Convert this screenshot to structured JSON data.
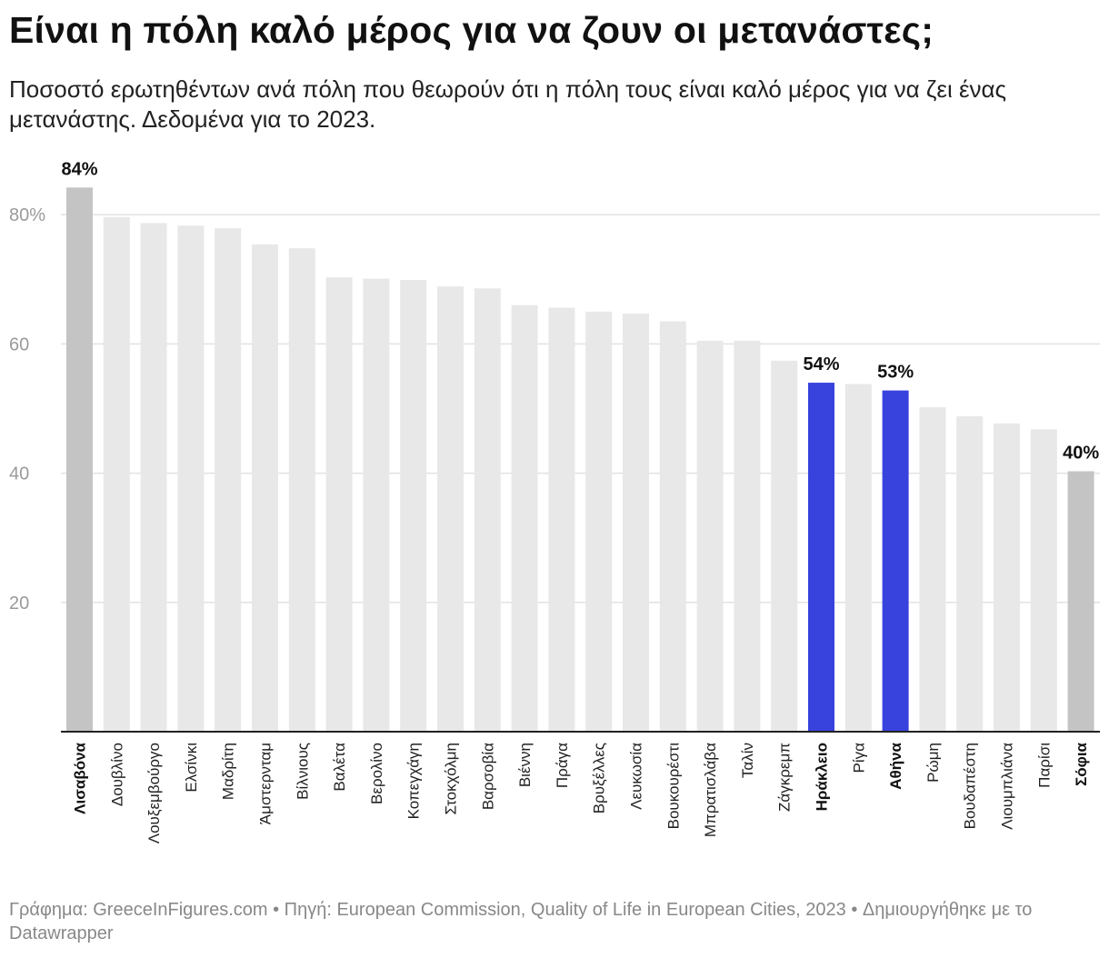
{
  "title": "Είναι η πόλη καλό μέρος για να ζουν οι μετανάστες;",
  "subtitle": "Ποσοστό ερωτηθέντων ανά πόλη που θεωρούν ότι η πόλη τους είναι καλό μέρος για να ζει ένας μετανάστης. Δεδομένα για το 2023.",
  "footer": "Γράφημα: GreeceInFigures.com • Πηγή: European Commission, Quality of Life in European Cities, 2023 • Δημιουργήθηκε με το Datawrapper",
  "colors": {
    "default_bar": "#e8e8e8",
    "extreme_bar": "#c4c4c4",
    "highlight_bar": "#3843dd",
    "gridline": "#e2e2e2",
    "axis": "#222222"
  },
  "chart_data": {
    "type": "bar",
    "title": "Είναι η πόλη καλό μέρος για να ζουν οι μετανάστες;",
    "xlabel": "",
    "ylabel": "",
    "ylim": [
      0,
      88
    ],
    "yticks": [
      20,
      40,
      60,
      80
    ],
    "ytick_labels": [
      "20",
      "40",
      "60",
      "80%"
    ],
    "categories": [
      "Λισαβόνα",
      "Δουβλίνο",
      "Λουξεμβούργο",
      "Ελσίνκι",
      "Μαδρίτη",
      "Άμστερνταμ",
      "Βίλνιους",
      "Βαλέτα",
      "Βερολίνο",
      "Κοπεγχάγη",
      "Στοκχόλμη",
      "Βαρσοβία",
      "Βιέννη",
      "Πράγα",
      "Βρυξέλλες",
      "Λευκωσία",
      "Βουκουρέστι",
      "Μπρατισλάβα",
      "Ταλίν",
      "Ζάγκρεμπ",
      "Ηράκλειο",
      "Ρίγα",
      "Αθήνα",
      "Ρώμη",
      "Βουδαπέστη",
      "Λιουμπλιάνα",
      "Παρίσι",
      "Σόφια"
    ],
    "values": [
      84.2,
      79.6,
      78.7,
      78.3,
      77.9,
      75.4,
      74.8,
      70.3,
      70.1,
      69.9,
      68.9,
      68.6,
      66.0,
      65.6,
      65.0,
      64.7,
      63.5,
      60.5,
      60.5,
      57.4,
      54.0,
      53.8,
      52.8,
      50.2,
      48.8,
      47.7,
      46.8,
      40.3
    ],
    "styles": [
      "extreme",
      "default",
      "default",
      "default",
      "default",
      "default",
      "default",
      "default",
      "default",
      "default",
      "default",
      "default",
      "default",
      "default",
      "default",
      "default",
      "default",
      "default",
      "default",
      "default",
      "highlight",
      "default",
      "highlight",
      "default",
      "default",
      "default",
      "default",
      "extreme"
    ],
    "bold_labels": [
      "Λισαβόνα",
      "Ηράκλειο",
      "Αθήνα",
      "Σόφια"
    ],
    "value_labels": [
      {
        "category": "Λισαβόνα",
        "text": "84%"
      },
      {
        "category": "Ηράκλειο",
        "text": "54%"
      },
      {
        "category": "Αθήνα",
        "text": "53%"
      },
      {
        "category": "Σόφια",
        "text": "40%"
      }
    ]
  }
}
